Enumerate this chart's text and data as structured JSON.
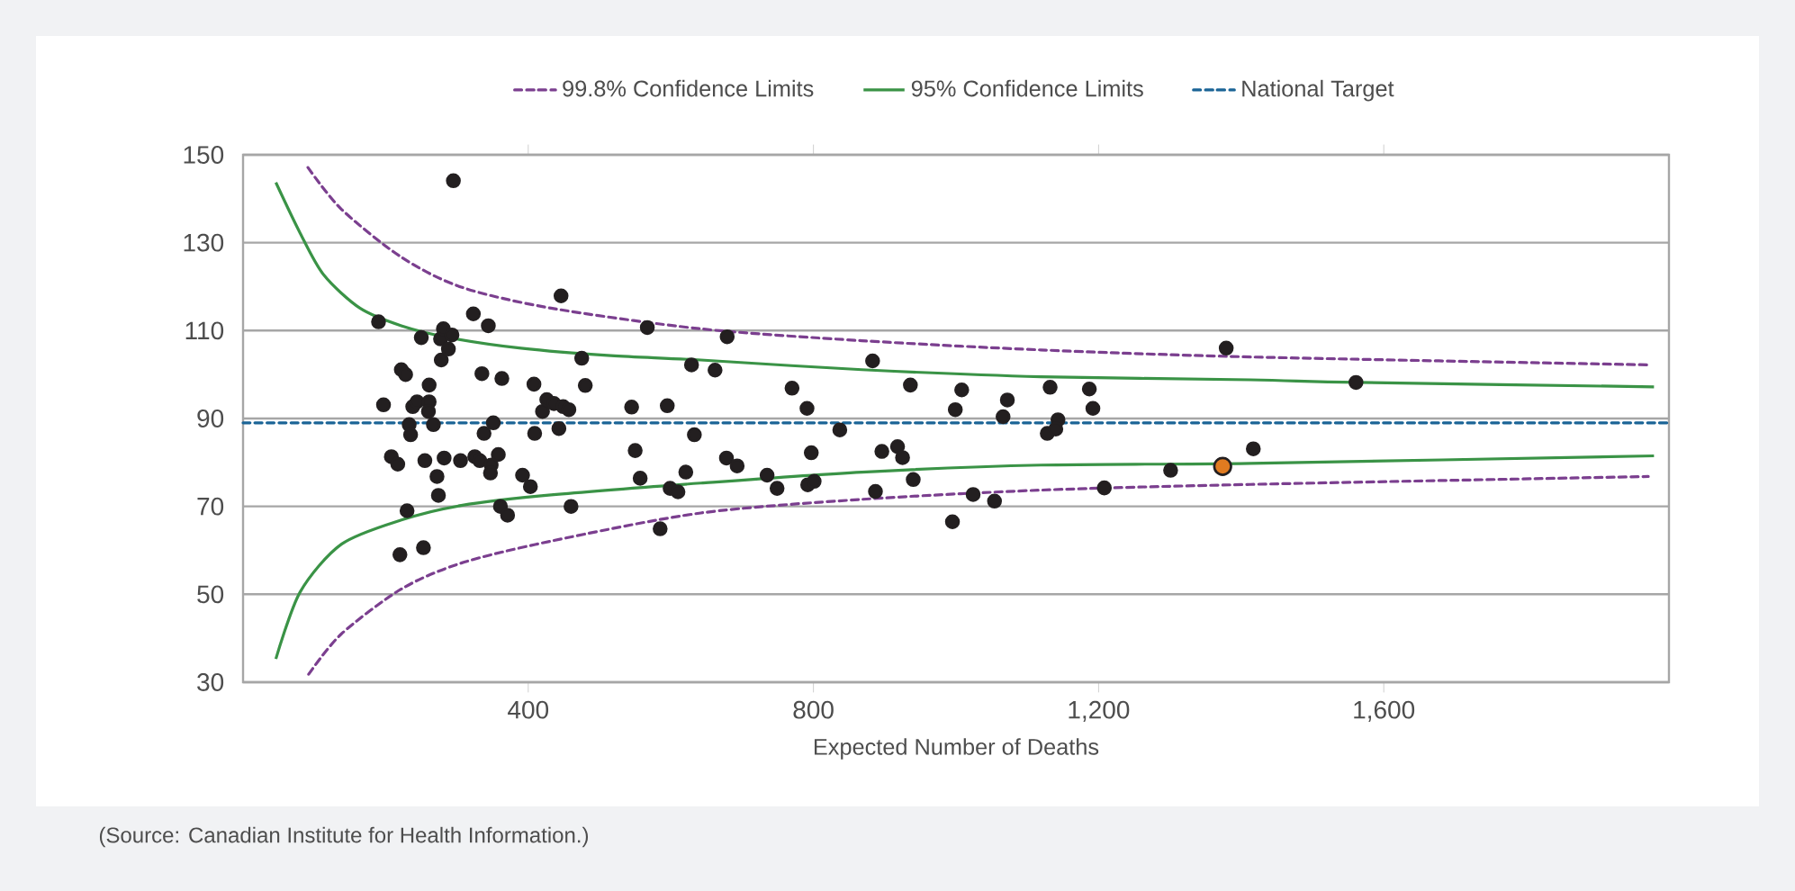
{
  "chart_data": {
    "type": "scatter",
    "xlabel": "Expected Number of Deaths",
    "xlim": [
      0,
      2000
    ],
    "ylim": [
      30,
      150
    ],
    "xticks": [
      400,
      800,
      {
        "value": 1200,
        "label": "1,200"
      },
      {
        "value": 1600,
        "label": "1,600"
      }
    ],
    "yticks": [
      30,
      50,
      70,
      90,
      110,
      130,
      150
    ],
    "grid": "y",
    "legend": "top",
    "annotations": [
      "(Source: Canadian Institute for Health Information.)"
    ],
    "series": [
      {
        "type": "line",
        "name": "99.8% Confidence Limits",
        "color": "#7b3f8f",
        "line_style": "dashed",
        "marker": "none",
        "x": [
          91,
          138,
          222,
          306,
          432,
          642,
          868,
          1119,
          1413,
          1971
        ],
        "values": [
          147.1,
          137.6,
          126.7,
          119.9,
          115.1,
          110.4,
          107.7,
          105.6,
          104,
          102.2
        ]
      },
      {
        "type": "line",
        "color": "#7b3f8f",
        "line_style": "dashed",
        "marker": "none",
        "x": [
          92,
          138,
          222,
          306,
          432,
          642,
          868,
          1119,
          1413,
          1971
        ],
        "values": [
          31.8,
          41,
          51.2,
          57.1,
          62.1,
          68.5,
          71.6,
          73.7,
          75,
          76.8
        ]
      },
      {
        "type": "line",
        "name": "95% Confidence Limits",
        "color": "#3a9346",
        "line_style": "solid",
        "marker": "none",
        "x": [
          46,
          80,
          113,
          164,
          222,
          289,
          390,
          516,
          642,
          868,
          1119,
          1413,
          1564,
          1979
        ],
        "values": [
          143.7,
          132.2,
          122.7,
          115.1,
          111.1,
          108.4,
          106,
          104.3,
          103.3,
          101.1,
          99.5,
          98.8,
          98.2,
          97.2
        ]
      },
      {
        "type": "line",
        "color": "#3a9346",
        "line_style": "solid",
        "marker": "none",
        "x": [
          46,
          80,
          138,
          222,
          306,
          432,
          642,
          868,
          1119,
          1413,
          1979
        ],
        "values": [
          35.3,
          50.5,
          61.4,
          66.9,
          70.2,
          72.6,
          75.3,
          77.8,
          79.4,
          79.8,
          81.5
        ]
      },
      {
        "type": "line",
        "name": "National Target",
        "color": "#1a6496",
        "line_style": "dashed",
        "marker": "none",
        "x": [
          0,
          2000
        ],
        "values": [
          89,
          89
        ]
      },
      {
        "color": "#231f20",
        "marker": "circle",
        "x": [
          295,
          190,
          197,
          208,
          217,
          222,
          228,
          230,
          220,
          233,
          235,
          238,
          244,
          261,
          261,
          260,
          250,
          255,
          253,
          267,
          272,
          274,
          277,
          281,
          278,
          288,
          293,
          282,
          305,
          323,
          344,
          335,
          338,
          351,
          325,
          332,
          348,
          347,
          358,
          363,
          361,
          371,
          392,
          403,
          408,
          409,
          420,
          426,
          436,
          446,
          443,
          449,
          457,
          460,
          475,
          480,
          545,
          550,
          557,
          567,
          585,
          595,
          599,
          610,
          621,
          629,
          633,
          679,
          662,
          770,
          791,
          837,
          883,
          936,
          999,
          1008,
          1072,
          1066,
          1132,
          1143,
          1128,
          1140,
          1187,
          1192,
          678,
          693,
          735,
          749,
          797,
          792,
          801,
          896,
          918,
          925,
          940,
          887,
          995,
          1024,
          1054,
          1208,
          1301,
          1379,
          1417,
          1561
        ],
        "values": [
          144.1,
          112,
          93.1,
          81.3,
          79.6,
          101.1,
          100,
          69,
          59,
          88.6,
          86.3,
          92.7,
          93.8,
          93.8,
          97.6,
          91.6,
          108.4,
          80.4,
          60.6,
          88.6,
          76.8,
          72.5,
          108.1,
          110.4,
          103.3,
          105.8,
          109,
          81,
          80.4,
          113.8,
          111.1,
          100.2,
          86.6,
          89,
          81.3,
          80.4,
          79.4,
          77.6,
          81.8,
          99.1,
          70,
          68,
          77.1,
          74.5,
          97.8,
          86.6,
          91.6,
          94.3,
          93.4,
          117.9,
          87.7,
          92.7,
          92,
          70,
          103.7,
          97.5,
          92.6,
          82.7,
          76.4,
          110.7,
          64.9,
          92.9,
          74.1,
          73.3,
          77.8,
          102.2,
          86.3,
          108.6,
          101,
          96.9,
          92.3,
          87.4,
          103.1,
          97.6,
          92,
          96.5,
          94.2,
          90.4,
          97.1,
          89.7,
          86.6,
          87.6,
          96.7,
          92.3,
          81,
          79.2,
          77.1,
          74.1,
          82.2,
          74.9,
          75.7,
          82.5,
          83.6,
          81.1,
          76.1,
          73.4,
          66.5,
          72.7,
          71.2,
          74.2,
          78.2,
          106,
          83.1,
          98.2
        ]
      },
      {
        "color": "#e07b20",
        "marker": "circle",
        "x": [
          1374
        ],
        "values": [
          79.1
        ]
      }
    ]
  }
}
